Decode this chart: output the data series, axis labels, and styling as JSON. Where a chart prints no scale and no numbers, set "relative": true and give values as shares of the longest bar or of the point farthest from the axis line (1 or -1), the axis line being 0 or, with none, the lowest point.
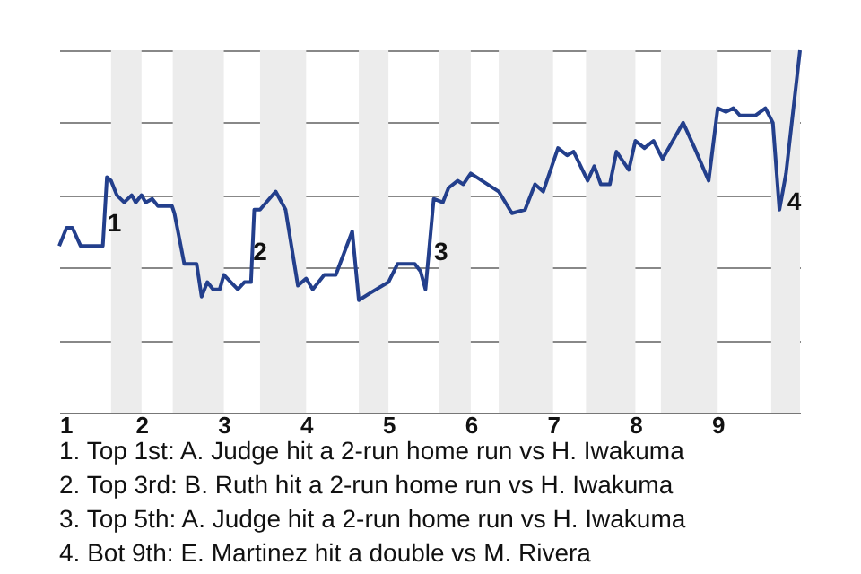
{
  "chart_data": {
    "type": "line",
    "relative": true,
    "grid": "y",
    "xlim": [
      1,
      10
    ],
    "xticks": [
      1,
      2,
      3,
      4,
      5,
      6,
      7,
      8,
      9
    ],
    "bands": [
      {
        "axis": "x",
        "from": 1.63,
        "to": 2,
        "color": "#ececec"
      },
      {
        "axis": "x",
        "from": 2.38,
        "to": 3,
        "color": "#ececec"
      },
      {
        "axis": "x",
        "from": 3.44,
        "to": 4,
        "color": "#ececec"
      },
      {
        "axis": "x",
        "from": 4.64,
        "to": 5,
        "color": "#ececec"
      },
      {
        "axis": "x",
        "from": 5.61,
        "to": 6,
        "color": "#ececec"
      },
      {
        "axis": "x",
        "from": 6.34,
        "to": 7,
        "color": "#ececec"
      },
      {
        "axis": "x",
        "from": 7.4,
        "to": 8,
        "color": "#ececec"
      },
      {
        "axis": "x",
        "from": 8.31,
        "to": 9,
        "color": "#ececec"
      },
      {
        "axis": "x",
        "from": 9.65,
        "to": 10,
        "color": "#ececec"
      }
    ],
    "series": [
      {
        "color": "#233f8c",
        "x": [
          1.0,
          1.09,
          1.16,
          1.26,
          1.53,
          1.58,
          1.63,
          1.7,
          1.79,
          1.88,
          1.93,
          2.0,
          2.05,
          2.13,
          2.2,
          2.37,
          2.4,
          2.52,
          2.67,
          2.73,
          2.8,
          2.87,
          2.95,
          3.0,
          3.17,
          3.25,
          3.33,
          3.37,
          3.44,
          3.63,
          3.75,
          3.9,
          4.0,
          4.08,
          4.22,
          4.36,
          4.56,
          4.64,
          4.78,
          5.0,
          5.11,
          5.32,
          5.39,
          5.45,
          5.55,
          5.66,
          5.73,
          5.84,
          5.91,
          6.0,
          6.34,
          6.5,
          6.66,
          6.78,
          6.88,
          7.06,
          7.17,
          7.25,
          7.42,
          7.5,
          7.58,
          7.69,
          7.77,
          7.92,
          8.0,
          8.11,
          8.22,
          8.33,
          8.58,
          8.72,
          8.89,
          9.0,
          9.1,
          9.19,
          9.27,
          9.46,
          9.58,
          9.67,
          9.75,
          9.83,
          10.0
        ],
        "values": [
          0.46,
          0.51,
          0.51,
          0.46,
          0.46,
          0.65,
          0.64,
          0.6,
          0.58,
          0.6,
          0.58,
          0.6,
          0.58,
          0.59,
          0.57,
          0.57,
          0.55,
          0.41,
          0.41,
          0.32,
          0.36,
          0.34,
          0.34,
          0.38,
          0.34,
          0.36,
          0.36,
          0.56,
          0.56,
          0.61,
          0.56,
          0.35,
          0.37,
          0.34,
          0.38,
          0.38,
          0.5,
          0.31,
          0.33,
          0.36,
          0.41,
          0.41,
          0.39,
          0.34,
          0.59,
          0.58,
          0.62,
          0.64,
          0.63,
          0.66,
          0.61,
          0.55,
          0.56,
          0.63,
          0.61,
          0.73,
          0.71,
          0.72,
          0.64,
          0.68,
          0.63,
          0.63,
          0.72,
          0.67,
          0.75,
          0.73,
          0.75,
          0.7,
          0.8,
          0.73,
          0.64,
          0.84,
          0.83,
          0.84,
          0.82,
          0.82,
          0.84,
          0.8,
          0.56,
          0.66,
          1
        ]
      }
    ],
    "annotations": [
      {
        "text": "1",
        "x": 1.67,
        "y": 0.52
      },
      {
        "text": "2",
        "x": 3.44,
        "y": 0.44
      },
      {
        "text": "3",
        "x": 5.64,
        "y": 0.44
      },
      {
        "text": "4",
        "x": 9.93,
        "y": 0.58
      },
      "1. Top 1st: A. Judge hit a 2-run home run vs H. Iwakuma",
      "2. Top 3rd: B. Ruth hit a 2-run home run vs H. Iwakuma",
      "3. Top 5th: A. Judge hit a 2-run home run vs H. Iwakuma",
      "4. Bot 9th: E. Martinez hit a double vs M. Rivera"
    ]
  }
}
